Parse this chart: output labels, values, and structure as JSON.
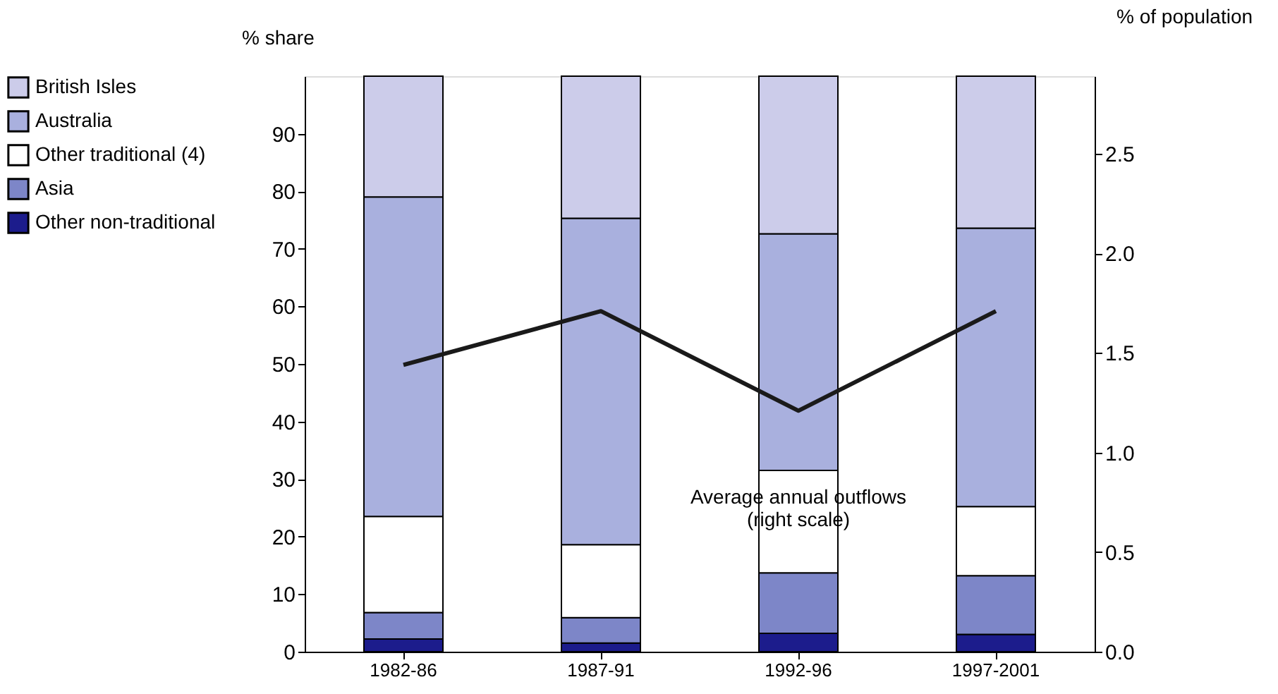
{
  "chart_data": {
    "type": "bar",
    "stacked": true,
    "categories": [
      "1982-86",
      "1987-91",
      "1992-96",
      "1997-2001"
    ],
    "ylabel": "% share",
    "y2label": "% of population",
    "ylim": [
      0,
      100
    ],
    "yticks": [
      0,
      10,
      20,
      30,
      40,
      50,
      60,
      70,
      80,
      90
    ],
    "y2lim": [
      0,
      2.89
    ],
    "y2ticks": [
      {
        "value": 0,
        "label": "0.0"
      },
      0.5,
      {
        "value": 1,
        "label": "1.0"
      },
      1.5,
      {
        "value": 2,
        "label": "2.0"
      },
      2.5
    ],
    "legend": "left",
    "grid": false,
    "series": [
      {
        "name": "Other non-traditional",
        "color": "#1c1c8c",
        "values": [
          2.2,
          1.5,
          3.2,
          3.0
        ]
      },
      {
        "name": "Asia",
        "color": "#7d86c8",
        "values": [
          4.6,
          4.4,
          10.5,
          10.2
        ]
      },
      {
        "name": "Other traditional (4)",
        "color": "#ffffff",
        "values": [
          16.7,
          12.7,
          17.8,
          12.0
        ]
      },
      {
        "name": "Australia",
        "color": "#a9b0de",
        "values": [
          55.5,
          56.7,
          41.1,
          48.4
        ]
      },
      {
        "name": "British Isles",
        "color": "#ccccea",
        "values": [
          21.0,
          24.7,
          27.4,
          26.4
        ]
      },
      {
        "type": "line",
        "axis": "y2",
        "color": "#1a1a1a",
        "values": [
          1.44,
          1.71,
          1.21,
          1.71
        ]
      }
    ],
    "annotations": [
      "Average annual outflows\n(right scale)"
    ]
  }
}
